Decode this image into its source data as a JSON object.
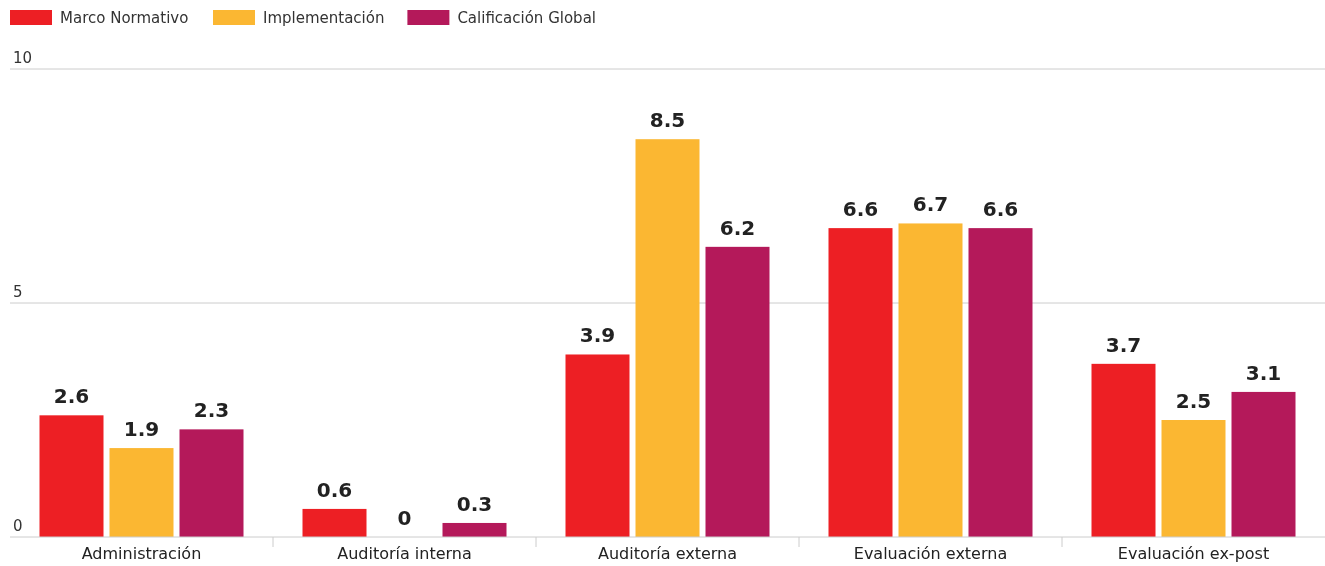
{
  "chart_data": {
    "type": "bar",
    "categories": [
      "Administración",
      "Auditoría interna",
      "Auditoría externa",
      "Evaluación externa",
      "Evaluación ex-post"
    ],
    "series": [
      {
        "name": "Marco Normativo",
        "color": "#ed1f24",
        "values": [
          2.6,
          0.6,
          3.9,
          6.6,
          3.7
        ]
      },
      {
        "name": "Implementación",
        "color": "#fbb732",
        "values": [
          1.9,
          0,
          8.5,
          6.7,
          2.5
        ]
      },
      {
        "name": "Calificación Global",
        "color": "#b4195a",
        "values": [
          2.3,
          0.3,
          6.2,
          6.6,
          3.1
        ]
      }
    ],
    "ylim": [
      0,
      10
    ],
    "yticks": [
      0,
      5,
      10
    ],
    "grid": "y",
    "legend": "top left",
    "data_labels": true
  }
}
